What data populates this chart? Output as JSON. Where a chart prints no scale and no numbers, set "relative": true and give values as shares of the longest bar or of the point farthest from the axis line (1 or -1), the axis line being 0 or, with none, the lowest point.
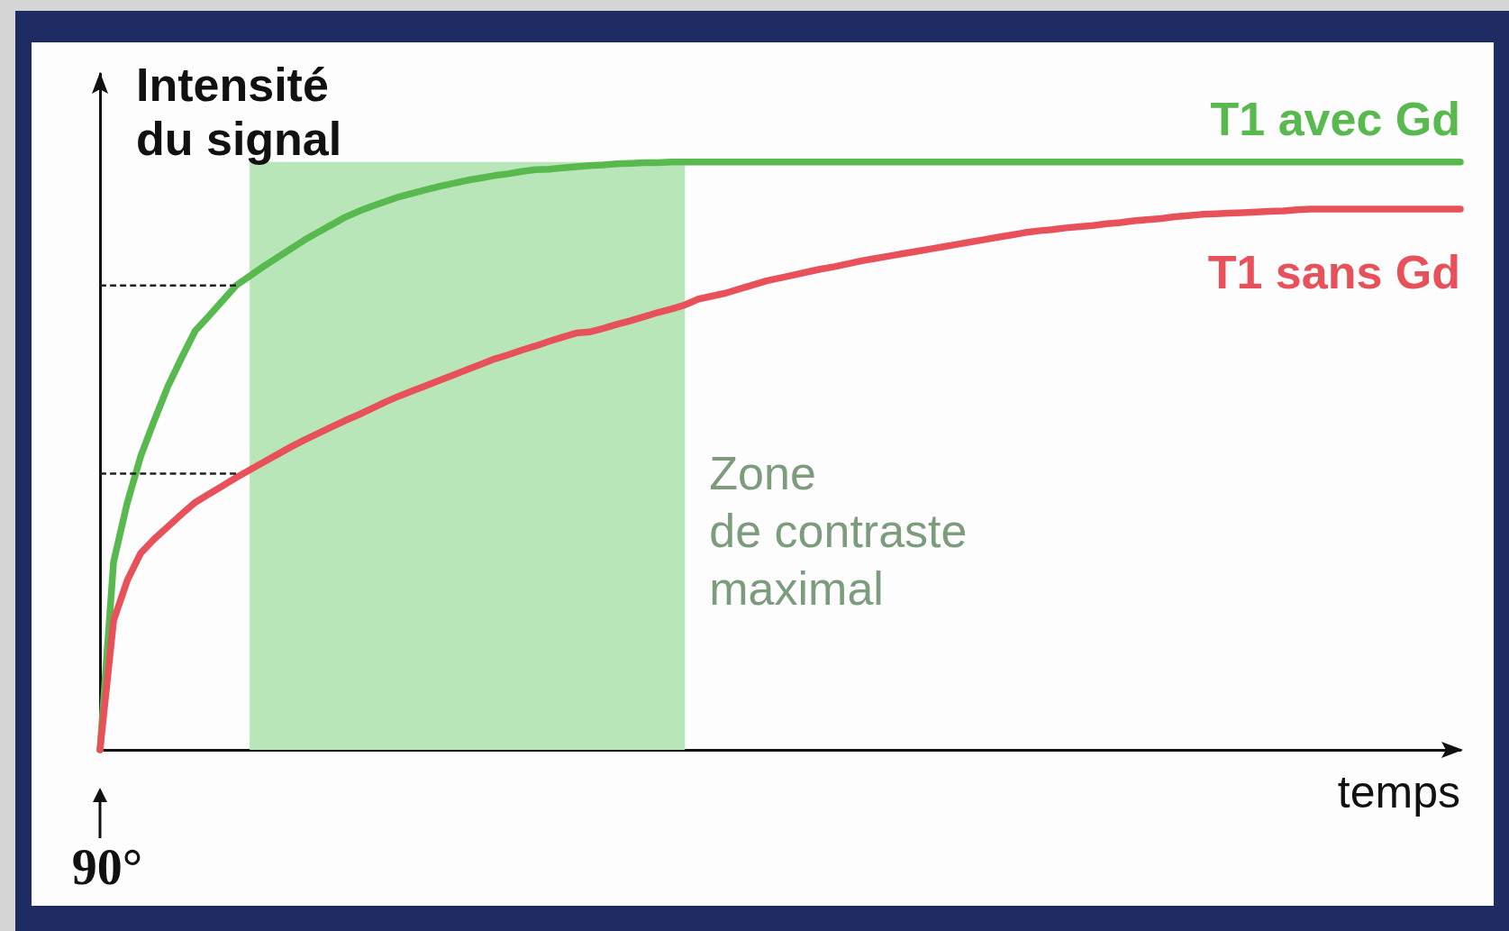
{
  "chart_data": {
    "type": "line",
    "relative": true,
    "ylabel": "Intensité\ndu signal",
    "xlabel": "temps",
    "categories": [
      null,
      null,
      null,
      null,
      null,
      null,
      null,
      null,
      null,
      null,
      null,
      null,
      null,
      null,
      null,
      null,
      null,
      null,
      null,
      null,
      null,
      null,
      null,
      null,
      null,
      null,
      null,
      null,
      null,
      null,
      null,
      null,
      null,
      null,
      null,
      null,
      null,
      null,
      null,
      null,
      null,
      null,
      null,
      null,
      null,
      null,
      null,
      null,
      null,
      null,
      null,
      null,
      null,
      null,
      null,
      null,
      null,
      null,
      null,
      null,
      null,
      null,
      null,
      null,
      null,
      null,
      null,
      null,
      null,
      null,
      null,
      null,
      null,
      null,
      null,
      null,
      null,
      null,
      null,
      null,
      null,
      null,
      null,
      null,
      null,
      null,
      null,
      null,
      null,
      null,
      null,
      null,
      null,
      null,
      null,
      null,
      null,
      null,
      null,
      null,
      null
    ],
    "series": [
      {
        "name": "T1 avec Gd",
        "color": "#58b94f",
        "values": [
          0,
          0.32,
          0.42,
          0.5,
          0.561,
          0.619,
          0.667,
          0.713,
          0.738,
          0.764,
          0.79,
          0.806,
          0.822,
          0.837,
          0.852,
          0.867,
          0.88,
          0.893,
          0.906,
          0.916,
          0.925,
          0.933,
          0.941,
          0.947,
          0.953,
          0.959,
          0.964,
          0.969,
          0.973,
          0.977,
          0.98,
          0.984,
          0.987,
          0.988,
          0.99,
          0.992,
          0.994,
          0.995,
          0.997,
          0.998,
          0.999,
          0.999,
          1,
          1,
          1,
          1,
          1,
          1,
          1,
          1,
          1,
          1,
          1,
          1,
          1,
          1,
          1,
          1,
          1,
          1,
          1,
          1,
          1,
          1,
          1,
          1,
          1,
          1,
          1,
          1,
          1,
          1,
          1,
          1,
          1,
          1,
          1,
          1,
          1,
          1,
          1,
          1,
          1,
          1,
          1,
          1,
          1,
          1,
          1,
          1,
          1,
          1,
          1,
          1,
          1,
          1,
          1,
          1,
          1,
          1,
          1
        ]
      },
      {
        "name": "T1 sans Gd",
        "color": "#e8505a",
        "values": [
          0,
          0.22,
          0.288,
          0.335,
          0.359,
          0.38,
          0.401,
          0.421,
          0.435,
          0.449,
          0.463,
          0.476,
          0.489,
          0.502,
          0.515,
          0.527,
          0.538,
          0.549,
          0.56,
          0.57,
          0.581,
          0.592,
          0.602,
          0.611,
          0.62,
          0.629,
          0.638,
          0.647,
          0.656,
          0.665,
          0.672,
          0.68,
          0.687,
          0.695,
          0.702,
          0.709,
          0.711,
          0.717,
          0.724,
          0.73,
          0.737,
          0.744,
          0.75,
          0.757,
          0.767,
          0.772,
          0.777,
          0.784,
          0.791,
          0.798,
          0.803,
          0.808,
          0.813,
          0.818,
          0.822,
          0.827,
          0.832,
          0.836,
          0.84,
          0.844,
          0.848,
          0.852,
          0.856,
          0.86,
          0.864,
          0.868,
          0.872,
          0.876,
          0.88,
          0.883,
          0.885,
          0.888,
          0.89,
          0.892,
          0.895,
          0.897,
          0.9,
          0.902,
          0.904,
          0.907,
          0.909,
          0.911,
          0.912,
          0.913,
          0.914,
          0.915,
          0.916,
          0.917,
          0.919,
          0.92,
          0.92,
          0.92,
          0.92,
          0.92,
          0.92,
          0.92,
          0.92,
          0.92,
          0.92,
          0.92,
          0.92
        ]
      },
      {
        "color": "#222222",
        "line_style": "dashed",
        "values": [
          0.79,
          0.79,
          0.79,
          0.79,
          0.79,
          0.79,
          0.79,
          0.79,
          0.79,
          0.79,
          0.79,
          null,
          null,
          null,
          null,
          null,
          null,
          null,
          null,
          null,
          null,
          null,
          null,
          null,
          null,
          null,
          null,
          null,
          null,
          null,
          null,
          null,
          null,
          null,
          null,
          null,
          null,
          null,
          null,
          null,
          null,
          null,
          null,
          null,
          null,
          null,
          null,
          null,
          null,
          null,
          null,
          null,
          null,
          null,
          null,
          null,
          null,
          null,
          null,
          null,
          null,
          null,
          null,
          null,
          null,
          null,
          null,
          null,
          null,
          null,
          null,
          null,
          null,
          null,
          null,
          null,
          null,
          null,
          null,
          null,
          null,
          null,
          null,
          null,
          null,
          null,
          null,
          null,
          null,
          null,
          null,
          null,
          null,
          null,
          null,
          null,
          null,
          null,
          null,
          null,
          null
        ]
      },
      {
        "color": "#222222",
        "line_style": "dashed",
        "values": [
          0.47,
          0.47,
          0.47,
          0.47,
          0.47,
          0.47,
          0.47,
          0.47,
          0.47,
          0.47,
          0.47,
          null,
          null,
          null,
          null,
          null,
          null,
          null,
          null,
          null,
          null,
          null,
          null,
          null,
          null,
          null,
          null,
          null,
          null,
          null,
          null,
          null,
          null,
          null,
          null,
          null,
          null,
          null,
          null,
          null,
          null,
          null,
          null,
          null,
          null,
          null,
          null,
          null,
          null,
          null,
          null,
          null,
          null,
          null,
          null,
          null,
          null,
          null,
          null,
          null,
          null,
          null,
          null,
          null,
          null,
          null,
          null,
          null,
          null,
          null,
          null,
          null,
          null,
          null,
          null,
          null,
          null,
          null,
          null,
          null,
          null,
          null,
          null,
          null,
          null,
          null,
          null,
          null,
          null,
          null,
          null,
          null,
          null,
          null,
          null,
          null,
          null,
          null,
          null,
          null,
          null
        ]
      },
      {
        "name": "Zone\nde contraste\nmaximal",
        "type": "area",
        "color": "#b8e6b8",
        "values": [
          null,
          null,
          null,
          null,
          null,
          null,
          null,
          null,
          null,
          null,
          null,
          1,
          1,
          1,
          1,
          1,
          1,
          1,
          1,
          1,
          1,
          1,
          1,
          1,
          1,
          1,
          1,
          1,
          1,
          1,
          1,
          1,
          1,
          1,
          1,
          1,
          1,
          1,
          1,
          1,
          1,
          1,
          1,
          1,
          null,
          null,
          null,
          null,
          null,
          null,
          null,
          null,
          null,
          null,
          null,
          null,
          null,
          null,
          null,
          null,
          null,
          null,
          null,
          null,
          null,
          null,
          null,
          null,
          null,
          null,
          null,
          null,
          null,
          null,
          null,
          null,
          null,
          null,
          null,
          null,
          null,
          null,
          null,
          null,
          null,
          null,
          null,
          null,
          null,
          null,
          null,
          null,
          null,
          null,
          null,
          null,
          null,
          null,
          null,
          null,
          null
        ]
      }
    ],
    "annotations": [
      "90°"
    ]
  }
}
